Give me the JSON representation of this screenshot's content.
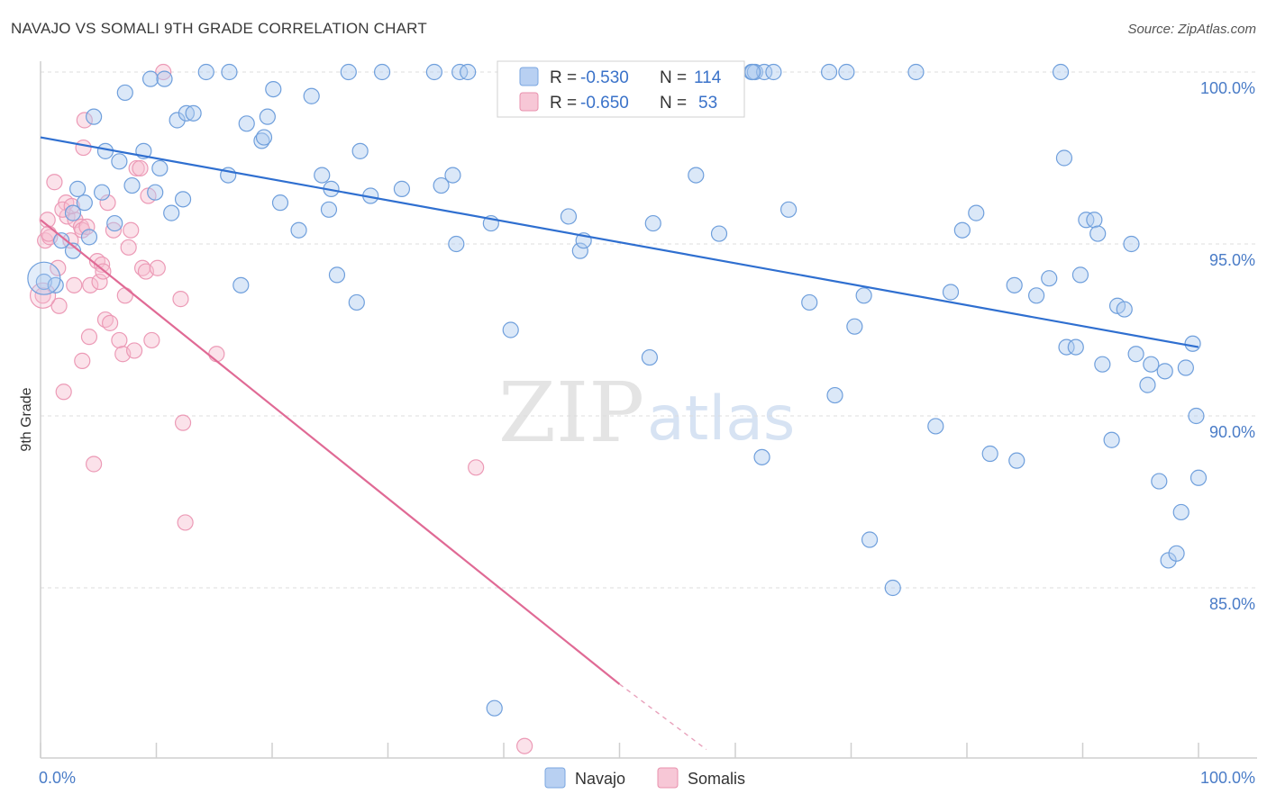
{
  "header": {
    "title": "NAVAJO VS SOMALI 9TH GRADE CORRELATION CHART",
    "source": "Source: ZipAtlas.com"
  },
  "legend": {
    "navajo": {
      "r_label": "R =",
      "r_value": "-0.530",
      "n_label": "N =",
      "n_value": "114",
      "color": "#7aa6e0",
      "fill": "#b8d0f2"
    },
    "somalis": {
      "r_label": "R =",
      "r_value": "-0.650",
      "n_label": "N =",
      "n_value": "53",
      "color": "#e891ad",
      "fill": "#f7c7d6"
    }
  },
  "bottom_legend": {
    "navajo": "Navajo",
    "somalis": "Somalis"
  },
  "watermark": {
    "part1": "ZIP",
    "part2": "atlas"
  },
  "chart_data": {
    "type": "scatter",
    "title": "NAVAJO VS SOMALI 9TH GRADE CORRELATION CHART",
    "xlabel": "",
    "ylabel": "9th Grade",
    "xlim": [
      0,
      100
    ],
    "ylim": [
      80.3,
      101
    ],
    "x_tick_labels": [
      "0.0%",
      "100.0%"
    ],
    "y_ticks": [
      85,
      90,
      95,
      100
    ],
    "y_tick_labels": [
      "85.0%",
      "90.0%",
      "95.0%",
      "100.0%"
    ],
    "grid": true,
    "legend_position": "top-center",
    "series": [
      {
        "name": "Navajo",
        "color": "#4a86d8",
        "trend": {
          "x": [
            0,
            100
          ],
          "y": [
            98.1,
            92.0
          ]
        },
        "points": [
          [
            0.3,
            93.9
          ],
          [
            1.3,
            93.8
          ],
          [
            1.8,
            95.1
          ],
          [
            2.8,
            94.8
          ],
          [
            2.8,
            95.9
          ],
          [
            3.2,
            96.6
          ],
          [
            3.8,
            96.2
          ],
          [
            4.2,
            95.2
          ],
          [
            4.6,
            98.7
          ],
          [
            5.3,
            96.5
          ],
          [
            5.6,
            97.7
          ],
          [
            6.4,
            95.6
          ],
          [
            6.8,
            97.4
          ],
          [
            7.3,
            99.4
          ],
          [
            7.9,
            96.7
          ],
          [
            8.9,
            97.7
          ],
          [
            9.5,
            99.8
          ],
          [
            9.9,
            96.5
          ],
          [
            10.3,
            97.2
          ],
          [
            10.7,
            99.8
          ],
          [
            11.3,
            95.9
          ],
          [
            11.8,
            98.6
          ],
          [
            12.3,
            96.3
          ],
          [
            12.6,
            98.8
          ],
          [
            13.2,
            98.8
          ],
          [
            14.3,
            100
          ],
          [
            16.2,
            97.0
          ],
          [
            16.3,
            100
          ],
          [
            17.3,
            93.8
          ],
          [
            17.8,
            98.5
          ],
          [
            19.1,
            98.0
          ],
          [
            19.3,
            98.1
          ],
          [
            19.6,
            98.7
          ],
          [
            20.1,
            99.5
          ],
          [
            20.7,
            96.2
          ],
          [
            22.3,
            95.4
          ],
          [
            23.4,
            99.3
          ],
          [
            24.3,
            97.0
          ],
          [
            24.9,
            96.0
          ],
          [
            25.1,
            96.6
          ],
          [
            25.6,
            94.1
          ],
          [
            26.6,
            100
          ],
          [
            27.3,
            93.3
          ],
          [
            27.6,
            97.7
          ],
          [
            28.5,
            96.4
          ],
          [
            29.5,
            100
          ],
          [
            31.2,
            96.6
          ],
          [
            34.0,
            100
          ],
          [
            34.6,
            96.7
          ],
          [
            35.6,
            97.0
          ],
          [
            35.9,
            95.0
          ],
          [
            36.2,
            100
          ],
          [
            36.9,
            100
          ],
          [
            38.9,
            95.6
          ],
          [
            40.6,
            92.5
          ],
          [
            45.6,
            95.8
          ],
          [
            46.6,
            94.8
          ],
          [
            46.9,
            95.1
          ],
          [
            52.6,
            91.7
          ],
          [
            52.9,
            95.6
          ],
          [
            54.6,
            100
          ],
          [
            56.6,
            97.0
          ],
          [
            58.6,
            95.3
          ],
          [
            61.4,
            100
          ],
          [
            61.7,
            100
          ],
          [
            62.3,
            88.8
          ],
          [
            62.5,
            100
          ],
          [
            63.3,
            100
          ],
          [
            64.6,
            96.0
          ],
          [
            66.4,
            93.3
          ],
          [
            68.1,
            100
          ],
          [
            68.6,
            90.6
          ],
          [
            69.6,
            100
          ],
          [
            70.3,
            92.6
          ],
          [
            71.1,
            93.5
          ],
          [
            71.6,
            86.4
          ],
          [
            73.6,
            85.0
          ],
          [
            75.6,
            100
          ],
          [
            77.3,
            89.7
          ],
          [
            78.6,
            93.6
          ],
          [
            79.6,
            95.4
          ],
          [
            80.8,
            95.9
          ],
          [
            82.0,
            88.9
          ],
          [
            84.1,
            93.8
          ],
          [
            84.3,
            88.7
          ],
          [
            86.0,
            93.5
          ],
          [
            87.1,
            94.0
          ],
          [
            88.1,
            100
          ],
          [
            88.4,
            97.5
          ],
          [
            88.6,
            92.0
          ],
          [
            89.4,
            92.0
          ],
          [
            89.8,
            94.1
          ],
          [
            90.3,
            95.7
          ],
          [
            91.0,
            95.7
          ],
          [
            91.3,
            95.3
          ],
          [
            91.7,
            91.5
          ],
          [
            92.5,
            89.3
          ],
          [
            93.0,
            93.2
          ],
          [
            93.6,
            93.1
          ],
          [
            94.2,
            95.0
          ],
          [
            94.6,
            91.8
          ],
          [
            95.6,
            90.9
          ],
          [
            95.9,
            91.5
          ],
          [
            96.6,
            88.1
          ],
          [
            97.1,
            91.3
          ],
          [
            97.4,
            85.8
          ],
          [
            98.1,
            86.0
          ],
          [
            98.5,
            87.2
          ],
          [
            98.9,
            91.4
          ],
          [
            99.5,
            92.1
          ],
          [
            99.8,
            90.0
          ],
          [
            100.0,
            88.2
          ],
          [
            39.2,
            81.5
          ],
          [
            61.5,
            100
          ]
        ]
      },
      {
        "name": "Somalis",
        "color": "#e0799e",
        "trend": {
          "x": [
            0,
            50.0
          ],
          "y": [
            95.7,
            82.2
          ]
        },
        "trend_dashed": {
          "x": [
            50.0,
            57.5
          ],
          "y": [
            82.2,
            80.3
          ]
        },
        "points": [
          [
            0.2,
            93.5
          ],
          [
            0.4,
            95.1
          ],
          [
            0.6,
            95.7
          ],
          [
            0.8,
            95.2
          ],
          [
            1.2,
            96.8
          ],
          [
            1.5,
            94.3
          ],
          [
            1.6,
            93.2
          ],
          [
            2.0,
            90.7
          ],
          [
            2.2,
            96.2
          ],
          [
            2.3,
            95.8
          ],
          [
            2.6,
            95.1
          ],
          [
            2.9,
            93.8
          ],
          [
            3.0,
            95.7
          ],
          [
            3.5,
            95.5
          ],
          [
            3.6,
            95.4
          ],
          [
            3.6,
            91.6
          ],
          [
            3.7,
            97.8
          ],
          [
            3.8,
            98.6
          ],
          [
            4.0,
            95.5
          ],
          [
            4.2,
            92.3
          ],
          [
            4.3,
            93.8
          ],
          [
            4.6,
            88.6
          ],
          [
            4.9,
            94.5
          ],
          [
            5.1,
            93.9
          ],
          [
            5.3,
            94.4
          ],
          [
            5.4,
            94.2
          ],
          [
            5.6,
            92.8
          ],
          [
            5.8,
            96.2
          ],
          [
            6.0,
            92.7
          ],
          [
            6.3,
            95.4
          ],
          [
            6.8,
            92.2
          ],
          [
            7.1,
            91.8
          ],
          [
            7.3,
            93.5
          ],
          [
            7.6,
            94.9
          ],
          [
            7.8,
            95.4
          ],
          [
            8.1,
            91.9
          ],
          [
            8.3,
            97.2
          ],
          [
            8.6,
            97.2
          ],
          [
            8.8,
            94.3
          ],
          [
            9.1,
            94.2
          ],
          [
            9.3,
            96.4
          ],
          [
            9.6,
            92.2
          ],
          [
            10.1,
            94.3
          ],
          [
            10.6,
            100
          ],
          [
            12.1,
            93.4
          ],
          [
            12.3,
            89.8
          ],
          [
            12.5,
            86.9
          ],
          [
            15.2,
            91.8
          ],
          [
            37.6,
            88.5
          ],
          [
            41.8,
            80.4
          ],
          [
            0.7,
            95.3
          ],
          [
            1.9,
            96.0
          ],
          [
            2.7,
            96.1
          ]
        ]
      }
    ]
  }
}
